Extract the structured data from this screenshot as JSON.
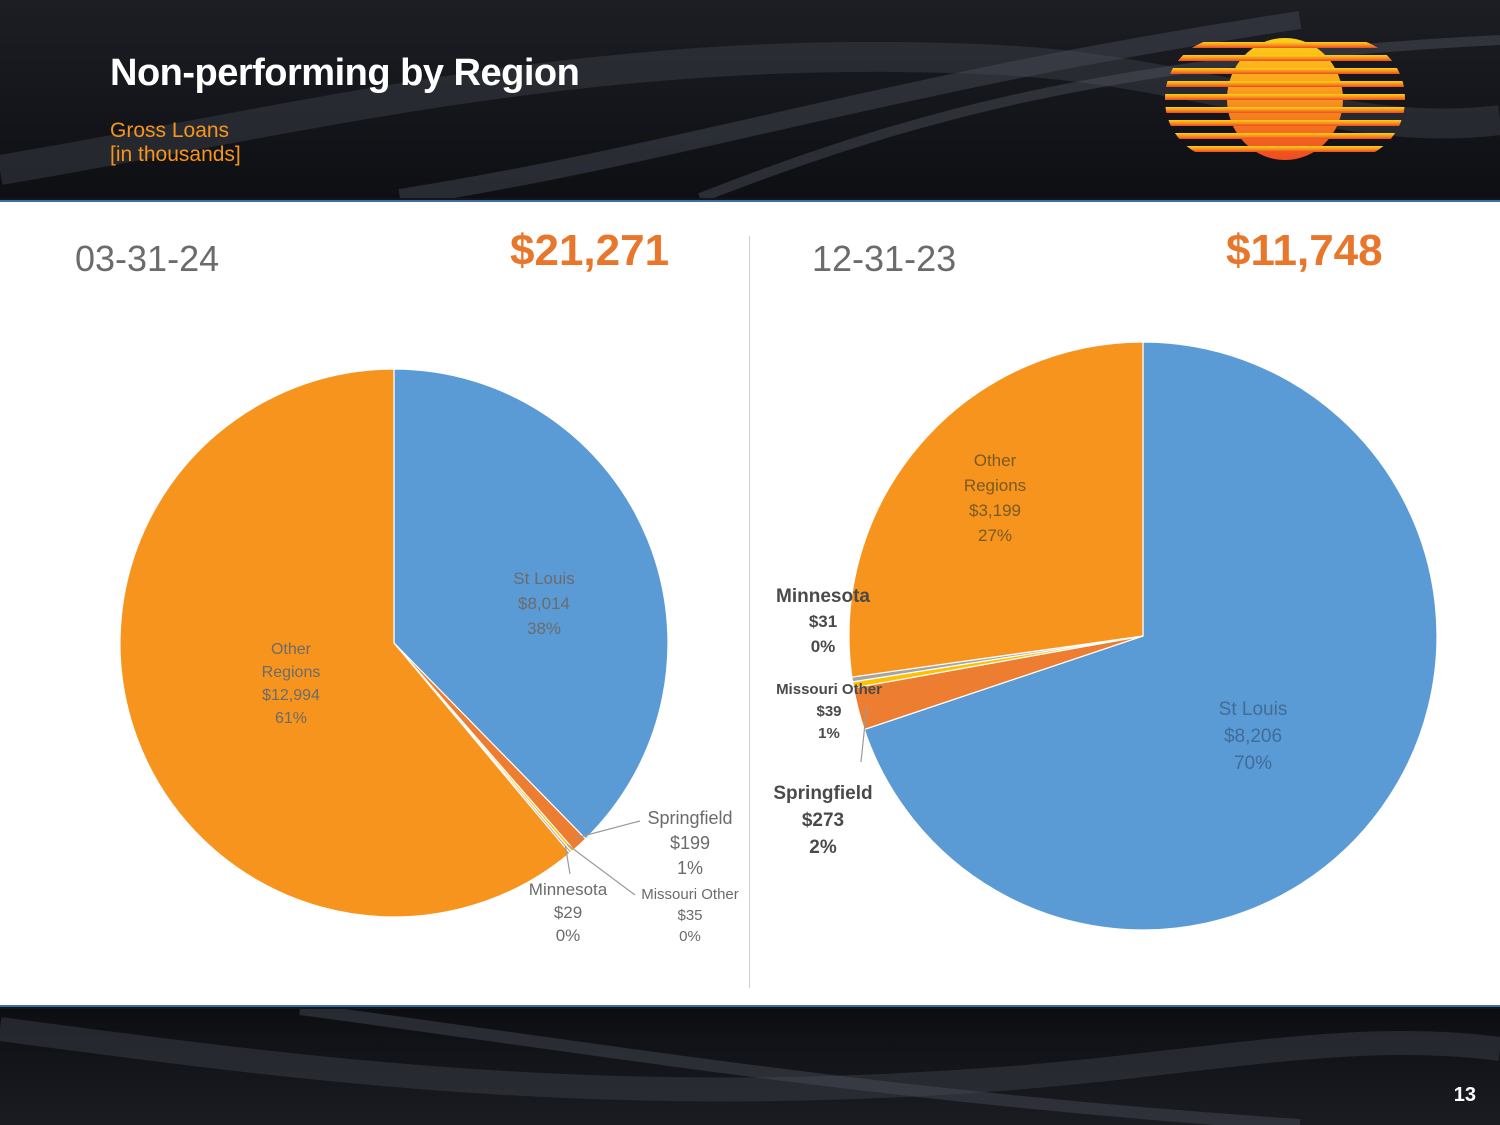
{
  "header": {
    "title": "Non-performing by Region",
    "subtitle_line1": "Gross Loans",
    "subtitle_line2": "[in thousands]"
  },
  "logo": {
    "name": "sun-logo"
  },
  "page_number": "13",
  "colors": {
    "st_louis": "#5b9bd5",
    "other_regions": "#f7941d",
    "springfield": "#ed7d31",
    "minnesota": "#a5a5a5",
    "missouri_other": "#ffc000",
    "accent": "#e8762b"
  },
  "left": {
    "date": "03-31-24",
    "total": "$21,271"
  },
  "right": {
    "date": "12-31-23",
    "total": "$11,748"
  },
  "chart_data": [
    {
      "type": "pie",
      "title": "03-31-24",
      "total_label": "$21,271",
      "units": "thousands",
      "slices": [
        {
          "name": "St Louis",
          "value": 8014,
          "value_label": "$8,014",
          "pct_label": "38%"
        },
        {
          "name": "Springfield",
          "value": 199,
          "value_label": "$199",
          "pct_label": "1%"
        },
        {
          "name": "Missouri Other",
          "value": 35,
          "value_label": "$35",
          "pct_label": "0%"
        },
        {
          "name": "Minnesota",
          "value": 29,
          "value_label": "$29",
          "pct_label": "0%"
        },
        {
          "name": "Other Regions",
          "value": 12994,
          "value_label": "$12,994",
          "pct_label": "61%"
        }
      ]
    },
    {
      "type": "pie",
      "title": "12-31-23",
      "total_label": "$11,748",
      "units": "thousands",
      "slices": [
        {
          "name": "St Louis",
          "value": 8206,
          "value_label": "$8,206",
          "pct_label": "70%"
        },
        {
          "name": "Springfield",
          "value": 273,
          "value_label": "$273",
          "pct_label": "2%"
        },
        {
          "name": "Missouri Other",
          "value": 39,
          "value_label": "$39",
          "pct_label": "1%"
        },
        {
          "name": "Minnesota",
          "value": 31,
          "value_label": "$31",
          "pct_label": "0%"
        },
        {
          "name": "Other Regions",
          "value": 3199,
          "value_label": "$3,199",
          "pct_label": "27%"
        }
      ]
    }
  ]
}
